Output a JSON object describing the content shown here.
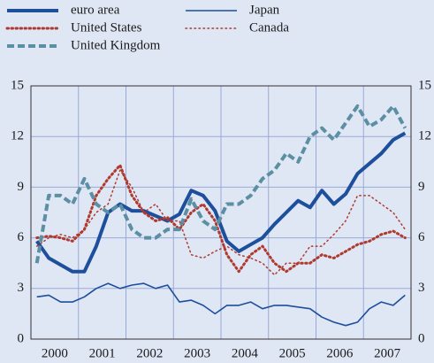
{
  "chart_data": {
    "type": "line",
    "x": [
      2000.125,
      2000.375,
      2000.625,
      2000.875,
      2001.125,
      2001.375,
      2001.625,
      2001.875,
      2002.125,
      2002.375,
      2002.625,
      2002.875,
      2003.125,
      2003.375,
      2003.625,
      2003.875,
      2004.125,
      2004.375,
      2004.625,
      2004.875,
      2005.125,
      2005.375,
      2005.625,
      2005.875,
      2006.125,
      2006.375,
      2006.625,
      2006.875,
      2007.125,
      2007.375,
      2007.625,
      2007.875
    ],
    "series": [
      {
        "name": "euro area",
        "color": "#1d4f9c",
        "style": "solid",
        "width": 4,
        "values": [
          5.8,
          4.8,
          4.4,
          4.0,
          4.0,
          5.5,
          7.5,
          8.0,
          7.6,
          7.6,
          7.3,
          7.0,
          7.4,
          8.8,
          8.5,
          7.6,
          5.8,
          5.2,
          5.6,
          6.0,
          6.8,
          7.5,
          8.2,
          7.8,
          8.8,
          8.0,
          8.6,
          9.8,
          10.4,
          11.0,
          11.8,
          12.2
        ]
      },
      {
        "name": "United States",
        "color": "#b03a2e",
        "style": "dotted",
        "width": 3,
        "values": [
          6.0,
          6.1,
          6.0,
          5.8,
          6.5,
          8.5,
          9.5,
          10.3,
          8.5,
          7.5,
          7.0,
          7.2,
          6.5,
          7.5,
          8.0,
          7.0,
          5.0,
          4.0,
          5.0,
          5.5,
          4.5,
          4.0,
          4.5,
          4.5,
          5.0,
          4.8,
          5.2,
          5.6,
          5.8,
          6.2,
          6.4,
          6.0
        ]
      },
      {
        "name": "United Kingdom",
        "color": "#5b8fa3",
        "style": "dashed",
        "width": 4,
        "values": [
          4.5,
          8.5,
          8.5,
          8.0,
          9.5,
          8.0,
          7.5,
          8.0,
          6.5,
          6.0,
          6.0,
          6.5,
          6.5,
          8.3,
          7.0,
          6.5,
          8.0,
          8.0,
          8.5,
          9.5,
          10.0,
          11.0,
          10.5,
          12.0,
          12.5,
          11.8,
          12.8,
          13.8,
          12.6,
          13.0,
          13.8,
          12.5
        ]
      },
      {
        "name": "Japan",
        "color": "#1d4f9c",
        "style": "solid",
        "width": 1.6,
        "values": [
          2.5,
          2.6,
          2.2,
          2.2,
          2.5,
          3.0,
          3.3,
          3.0,
          3.2,
          3.3,
          3.0,
          3.2,
          2.2,
          2.3,
          2.0,
          1.5,
          2.0,
          2.0,
          2.2,
          1.8,
          2.0,
          2.0,
          1.9,
          1.8,
          1.3,
          1.0,
          0.8,
          1.0,
          1.8,
          2.2,
          2.0,
          2.6
        ]
      },
      {
        "name": "Canada",
        "color": "#b03a2e",
        "style": "dotted",
        "width": 1.5,
        "values": [
          5.5,
          6.0,
          6.2,
          6.0,
          6.5,
          7.5,
          8.0,
          10.0,
          9.0,
          7.5,
          8.0,
          7.0,
          7.0,
          5.0,
          4.8,
          5.2,
          5.5,
          5.0,
          4.8,
          4.5,
          3.8,
          4.5,
          4.5,
          5.5,
          5.5,
          6.2,
          7.0,
          8.5,
          8.5,
          8.0,
          7.5,
          6.5
        ]
      }
    ],
    "xlim": [
      2000,
      2008
    ],
    "xticks": [
      {
        "value": 2000.5,
        "label": "2000"
      },
      {
        "value": 2001.5,
        "label": "2001"
      },
      {
        "value": 2002.5,
        "label": "2002"
      },
      {
        "value": 2003.5,
        "label": "2003"
      },
      {
        "value": 2004.5,
        "label": "2004"
      },
      {
        "value": 2005.5,
        "label": "2005"
      },
      {
        "value": 2006.5,
        "label": "2006"
      },
      {
        "value": 2007.5,
        "label": "2007"
      }
    ],
    "xgrid": [
      2001,
      2002,
      2003,
      2004,
      2005,
      2006,
      2007
    ],
    "ylim": [
      0,
      15
    ],
    "yticks": [
      0,
      3,
      6,
      9,
      12,
      15
    ],
    "grid": true
  }
}
